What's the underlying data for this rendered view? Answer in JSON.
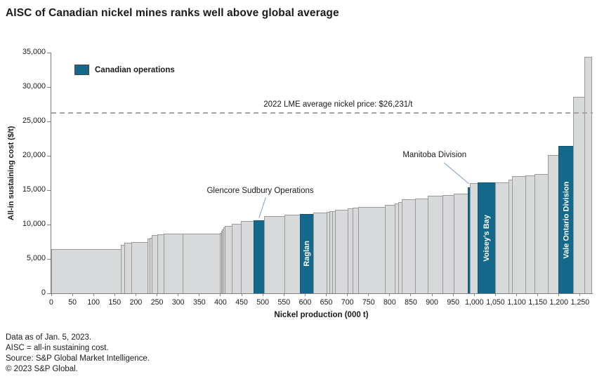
{
  "title": "AISC of Canadian nickel mines ranks well above global average",
  "legend": {
    "label": "Canadian operations"
  },
  "footer": {
    "lines": [
      "Data as of Jan. 5, 2023.",
      "AISC = all-in sustaining cost.",
      "Source: S&P Global Market Intelligence.",
      "© 2023 S&P Global."
    ]
  },
  "chart_data": {
    "type": "bar",
    "subtype": "variable-width cost curve; x = cumulative nickel production, bar width = mine output",
    "title": "AISC of Canadian nickel mines ranks well above global average",
    "xlabel": "Nickel production (000 t)",
    "ylabel": "All-in sustaining cost ($/t)",
    "xlim": [
      0,
      1280
    ],
    "ylim": [
      0,
      35000
    ],
    "x_ticks": [
      0,
      50,
      100,
      150,
      200,
      250,
      300,
      350,
      400,
      450,
      500,
      550,
      600,
      650,
      700,
      750,
      800,
      850,
      900,
      950,
      1000,
      1050,
      1100,
      1150,
      1200,
      1250
    ],
    "y_ticks": [
      0,
      5000,
      10000,
      15000,
      20000,
      25000,
      30000,
      35000
    ],
    "grid": false,
    "legend_position": "top-left inside plot",
    "colors": {
      "canadian": "#14698a",
      "other": "#d8d9db",
      "bar_border": "#9a9a9a",
      "reference_line": "#a3a3a3",
      "arrow": "#93a9d9",
      "text": "#1a1a1a"
    },
    "reference_line": {
      "value": 26231,
      "label": "2022 LME average nickel price: $26,231/t",
      "label_x": 678
    },
    "segments": [
      {
        "x0": 0,
        "x1": 165,
        "aisc": 6400,
        "canadian": false
      },
      {
        "x0": 165,
        "x1": 172,
        "aisc": 7000,
        "canadian": false
      },
      {
        "x0": 172,
        "x1": 190,
        "aisc": 7300,
        "canadian": false
      },
      {
        "x0": 190,
        "x1": 228,
        "aisc": 7450,
        "canadian": false
      },
      {
        "x0": 228,
        "x1": 233,
        "aisc": 8000,
        "canadian": false
      },
      {
        "x0": 233,
        "x1": 237,
        "aisc": 8100,
        "canadian": false
      },
      {
        "x0": 237,
        "x1": 251,
        "aisc": 8500,
        "canadian": false
      },
      {
        "x0": 251,
        "x1": 266,
        "aisc": 8600,
        "canadian": false
      },
      {
        "x0": 266,
        "x1": 311,
        "aisc": 8650,
        "canadian": false
      },
      {
        "x0": 311,
        "x1": 398,
        "aisc": 8700,
        "canadian": false
      },
      {
        "x0": 398,
        "x1": 401,
        "aisc": 8800,
        "canadian": false
      },
      {
        "x0": 401,
        "x1": 404,
        "aisc": 9050,
        "canadian": false
      },
      {
        "x0": 404,
        "x1": 407,
        "aisc": 9300,
        "canadian": false
      },
      {
        "x0": 407,
        "x1": 410,
        "aisc": 9550,
        "canadian": false
      },
      {
        "x0": 410,
        "x1": 427,
        "aisc": 9800,
        "canadian": false
      },
      {
        "x0": 427,
        "x1": 448,
        "aisc": 10100,
        "canadian": false
      },
      {
        "x0": 448,
        "x1": 478,
        "aisc": 10500,
        "canadian": false
      },
      {
        "x0": 478,
        "x1": 503,
        "aisc": 10650,
        "canadian": true,
        "name": "Glencore Sudbury Operations"
      },
      {
        "x0": 503,
        "x1": 551,
        "aisc": 11250,
        "canadian": false
      },
      {
        "x0": 551,
        "x1": 587,
        "aisc": 11400,
        "canadian": false
      },
      {
        "x0": 587,
        "x1": 619,
        "aisc": 11500,
        "canadian": true,
        "name": "Raglan",
        "label_inside": "Raglan"
      },
      {
        "x0": 619,
        "x1": 650,
        "aisc": 11700,
        "canadian": false
      },
      {
        "x0": 650,
        "x1": 657,
        "aisc": 11800,
        "canadian": false
      },
      {
        "x0": 657,
        "x1": 664,
        "aisc": 11900,
        "canadian": false
      },
      {
        "x0": 664,
        "x1": 671,
        "aisc": 11975,
        "canadian": false
      },
      {
        "x0": 671,
        "x1": 700,
        "aisc": 12100,
        "canadian": false
      },
      {
        "x0": 700,
        "x1": 712,
        "aisc": 12300,
        "canadian": false
      },
      {
        "x0": 712,
        "x1": 725,
        "aisc": 12400,
        "canadian": false
      },
      {
        "x0": 725,
        "x1": 788,
        "aisc": 12550,
        "canadian": false
      },
      {
        "x0": 788,
        "x1": 812,
        "aisc": 12850,
        "canadian": false
      },
      {
        "x0": 812,
        "x1": 820,
        "aisc": 13100,
        "canadian": false
      },
      {
        "x0": 820,
        "x1": 828,
        "aisc": 13250,
        "canadian": false
      },
      {
        "x0": 828,
        "x1": 860,
        "aisc": 13650,
        "canadian": false
      },
      {
        "x0": 860,
        "x1": 890,
        "aisc": 13800,
        "canadian": false
      },
      {
        "x0": 890,
        "x1": 925,
        "aisc": 14150,
        "canadian": false
      },
      {
        "x0": 925,
        "x1": 952,
        "aisc": 14300,
        "canadian": false
      },
      {
        "x0": 952,
        "x1": 984,
        "aisc": 14450,
        "canadian": false
      },
      {
        "x0": 984,
        "x1": 990,
        "aisc": 15450,
        "canadian": true,
        "name": "Manitoba Division"
      },
      {
        "x0": 990,
        "x1": 1008,
        "aisc": 16050,
        "canadian": false
      },
      {
        "x0": 1008,
        "x1": 1050,
        "aisc": 16100,
        "canadian": true,
        "name": "Voisey’s Bay",
        "label_inside": "Voisey’s Bay"
      },
      {
        "x0": 1050,
        "x1": 1081,
        "aisc": 16150,
        "canadian": false
      },
      {
        "x0": 1081,
        "x1": 1089,
        "aisc": 16550,
        "canadian": false
      },
      {
        "x0": 1089,
        "x1": 1120,
        "aisc": 17000,
        "canadian": false
      },
      {
        "x0": 1120,
        "x1": 1142,
        "aisc": 17150,
        "canadian": false
      },
      {
        "x0": 1142,
        "x1": 1174,
        "aisc": 17350,
        "canadian": false
      },
      {
        "x0": 1174,
        "x1": 1198,
        "aisc": 20100,
        "canadian": false
      },
      {
        "x0": 1198,
        "x1": 1234,
        "aisc": 21400,
        "canadian": true,
        "name": "Vale Ontario Division",
        "label_inside": "Vale Ontario Division"
      },
      {
        "x0": 1234,
        "x1": 1260,
        "aisc": 28600,
        "canadian": false
      },
      {
        "x0": 1260,
        "x1": 1277,
        "aisc": 34400,
        "canadian": false
      }
    ],
    "annotations": [
      {
        "text": "Glencore Sudbury Operations",
        "x": 494,
        "y": 14900,
        "arrow": {
          "x1": 507,
          "y1": 13950,
          "x2": 491,
          "y2": 10950
        }
      },
      {
        "text": "Manitoba Division",
        "x": 906,
        "y": 20100,
        "arrow": {
          "x1": 928,
          "y1": 19000,
          "x2": 987,
          "y2": 15950
        }
      }
    ]
  }
}
